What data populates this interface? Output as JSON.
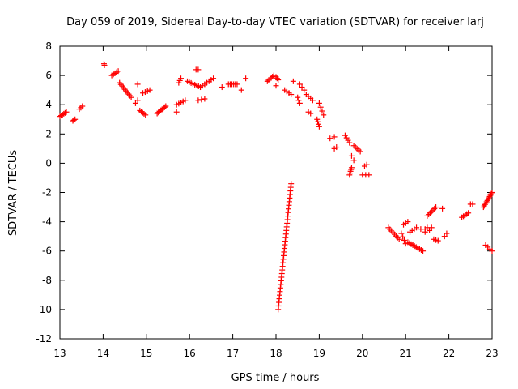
{
  "chart_data": {
    "type": "scatter",
    "title": "Day 059 of 2019, Sidereal Day-to-day VTEC variation (SDTVAR) for receiver larj",
    "xlabel": "GPS time / hours",
    "ylabel": "SDTVAR / TECUs",
    "xlim": [
      13,
      23
    ],
    "ylim": [
      -12,
      8
    ],
    "xticks": [
      13,
      14,
      15,
      16,
      17,
      18,
      19,
      20,
      21,
      22,
      23
    ],
    "yticks": [
      -12,
      -10,
      -8,
      -6,
      -4,
      -2,
      0,
      2,
      4,
      6,
      8
    ],
    "grid": false,
    "marker": "+",
    "color": "#ff0000",
    "series": [
      {
        "name": "SDTVAR",
        "segments": [
          {
            "x0": 13.0,
            "y0": 3.2,
            "x1": 13.15,
            "y1": 3.5,
            "n": 6
          },
          {
            "x0": 13.3,
            "y0": 2.9,
            "x1": 13.35,
            "y1": 3.0,
            "n": 3
          },
          {
            "x0": 13.45,
            "y0": 3.7,
            "x1": 13.52,
            "y1": 3.9,
            "n": 3
          },
          {
            "x0": 14.02,
            "y0": 6.8,
            "x1": 14.03,
            "y1": 6.7,
            "n": 2
          },
          {
            "x0": 14.2,
            "y0": 6.0,
            "x1": 14.35,
            "y1": 6.3,
            "n": 5
          },
          {
            "x0": 14.38,
            "y0": 5.5,
            "x1": 14.65,
            "y1": 4.5,
            "n": 10
          },
          {
            "x0": 14.75,
            "y0": 4.1,
            "x1": 14.8,
            "y1": 4.3,
            "n": 2
          },
          {
            "x0": 14.85,
            "y0": 3.6,
            "x1": 14.98,
            "y1": 3.3,
            "n": 5
          },
          {
            "x0": 14.92,
            "y0": 4.8,
            "x1": 15.08,
            "y1": 5.0,
            "n": 4
          },
          {
            "x0": 14.8,
            "y0": 5.4,
            "x1": 14.8,
            "y1": 5.4,
            "n": 1
          },
          {
            "x0": 15.25,
            "y0": 3.4,
            "x1": 15.45,
            "y1": 3.9,
            "n": 8
          },
          {
            "x0": 15.7,
            "y0": 4.0,
            "x1": 15.9,
            "y1": 4.3,
            "n": 5
          },
          {
            "x0": 15.75,
            "y0": 5.5,
            "x1": 15.8,
            "y1": 5.8,
            "n": 3
          },
          {
            "x0": 15.7,
            "y0": 3.5,
            "x1": 15.7,
            "y1": 3.5,
            "n": 1
          },
          {
            "x0": 15.95,
            "y0": 5.6,
            "x1": 16.25,
            "y1": 5.2,
            "n": 8
          },
          {
            "x0": 16.15,
            "y0": 6.4,
            "x1": 16.2,
            "y1": 6.4,
            "n": 2
          },
          {
            "x0": 16.2,
            "y0": 4.3,
            "x1": 16.35,
            "y1": 4.4,
            "n": 3
          },
          {
            "x0": 16.3,
            "y0": 5.3,
            "x1": 16.55,
            "y1": 5.8,
            "n": 6
          },
          {
            "x0": 16.75,
            "y0": 5.2,
            "x1": 16.75,
            "y1": 5.2,
            "n": 1
          },
          {
            "x0": 16.9,
            "y0": 5.4,
            "x1": 17.1,
            "y1": 5.4,
            "n": 6
          },
          {
            "x0": 17.2,
            "y0": 5.0,
            "x1": 17.2,
            "y1": 5.0,
            "n": 1
          },
          {
            "x0": 17.3,
            "y0": 5.8,
            "x1": 17.3,
            "y1": 5.8,
            "n": 1
          },
          {
            "x0": 17.8,
            "y0": 5.6,
            "x1": 17.95,
            "y1": 6.0,
            "n": 6
          },
          {
            "x0": 18.0,
            "y0": 5.9,
            "x1": 18.05,
            "y1": 5.7,
            "n": 3
          },
          {
            "x0": 18.0,
            "y0": 5.3,
            "x1": 18.0,
            "y1": 5.3,
            "n": 1
          },
          {
            "x0": 18.2,
            "y0": 5.0,
            "x1": 18.35,
            "y1": 4.7,
            "n": 4
          },
          {
            "x0": 18.4,
            "y0": 5.6,
            "x1": 18.4,
            "y1": 5.6,
            "n": 1
          },
          {
            "x0": 18.55,
            "y0": 5.4,
            "x1": 18.65,
            "y1": 5.0,
            "n": 3
          },
          {
            "x0": 18.5,
            "y0": 4.5,
            "x1": 18.55,
            "y1": 4.1,
            "n": 3
          },
          {
            "x0": 18.7,
            "y0": 4.7,
            "x1": 18.85,
            "y1": 4.3,
            "n": 4
          },
          {
            "x0": 18.75,
            "y0": 3.5,
            "x1": 18.8,
            "y1": 3.4,
            "n": 2
          },
          {
            "x0": 18.95,
            "y0": 3.0,
            "x1": 19.0,
            "y1": 2.5,
            "n": 4
          },
          {
            "x0": 19.0,
            "y0": 4.1,
            "x1": 19.1,
            "y1": 3.3,
            "n": 4
          },
          {
            "x0": 19.25,
            "y0": 1.7,
            "x1": 19.35,
            "y1": 1.8,
            "n": 2
          },
          {
            "x0": 19.35,
            "y0": 1.0,
            "x1": 19.4,
            "y1": 1.1,
            "n": 2
          },
          {
            "x0": 19.6,
            "y0": 1.9,
            "x1": 19.7,
            "y1": 1.4,
            "n": 4
          },
          {
            "x0": 19.7,
            "y0": -0.8,
            "x1": 19.75,
            "y1": -0.3,
            "n": 5
          },
          {
            "x0": 19.8,
            "y0": 1.2,
            "x1": 19.95,
            "y1": 0.8,
            "n": 5
          },
          {
            "x0": 19.75,
            "y0": 0.5,
            "x1": 19.8,
            "y1": 0.2,
            "n": 2
          },
          {
            "x0": 20.0,
            "y0": -0.8,
            "x1": 20.15,
            "y1": -0.8,
            "n": 3
          },
          {
            "x0": 20.05,
            "y0": -0.2,
            "x1": 20.1,
            "y1": -0.1,
            "n": 2
          },
          {
            "x0": 18.05,
            "y0": -10.0,
            "x1": 18.35,
            "y1": -1.4,
            "n": 36
          },
          {
            "x0": 20.6,
            "y0": -4.4,
            "x1": 20.85,
            "y1": -5.2,
            "n": 8
          },
          {
            "x0": 20.9,
            "y0": -4.8,
            "x1": 21.0,
            "y1": -5.5,
            "n": 4
          },
          {
            "x0": 20.95,
            "y0": -4.2,
            "x1": 21.05,
            "y1": -4.0,
            "n": 3
          },
          {
            "x0": 21.05,
            "y0": -5.4,
            "x1": 21.4,
            "y1": -6.0,
            "n": 10
          },
          {
            "x0": 21.1,
            "y0": -4.7,
            "x1": 21.25,
            "y1": -4.4,
            "n": 4
          },
          {
            "x0": 21.35,
            "y0": -4.5,
            "x1": 21.45,
            "y1": -4.5,
            "n": 2
          },
          {
            "x0": 21.45,
            "y0": -4.7,
            "x1": 21.5,
            "y1": -4.4,
            "n": 2
          },
          {
            "x0": 21.5,
            "y0": -3.6,
            "x1": 21.7,
            "y1": -3.0,
            "n": 7
          },
          {
            "x0": 21.55,
            "y0": -4.6,
            "x1": 21.6,
            "y1": -4.4,
            "n": 2
          },
          {
            "x0": 21.65,
            "y0": -5.2,
            "x1": 21.75,
            "y1": -5.3,
            "n": 3
          },
          {
            "x0": 21.85,
            "y0": -3.1,
            "x1": 21.85,
            "y1": -3.1,
            "n": 1
          },
          {
            "x0": 21.9,
            "y0": -5.0,
            "x1": 21.95,
            "y1": -4.8,
            "n": 2
          },
          {
            "x0": 22.3,
            "y0": -3.7,
            "x1": 22.45,
            "y1": -3.4,
            "n": 5
          },
          {
            "x0": 22.5,
            "y0": -2.8,
            "x1": 22.55,
            "y1": -2.8,
            "n": 2
          },
          {
            "x0": 22.8,
            "y0": -3.0,
            "x1": 23.0,
            "y1": -2.0,
            "n": 12
          },
          {
            "x0": 22.85,
            "y0": -5.6,
            "x1": 23.0,
            "y1": -6.0,
            "n": 4
          }
        ]
      }
    ]
  }
}
